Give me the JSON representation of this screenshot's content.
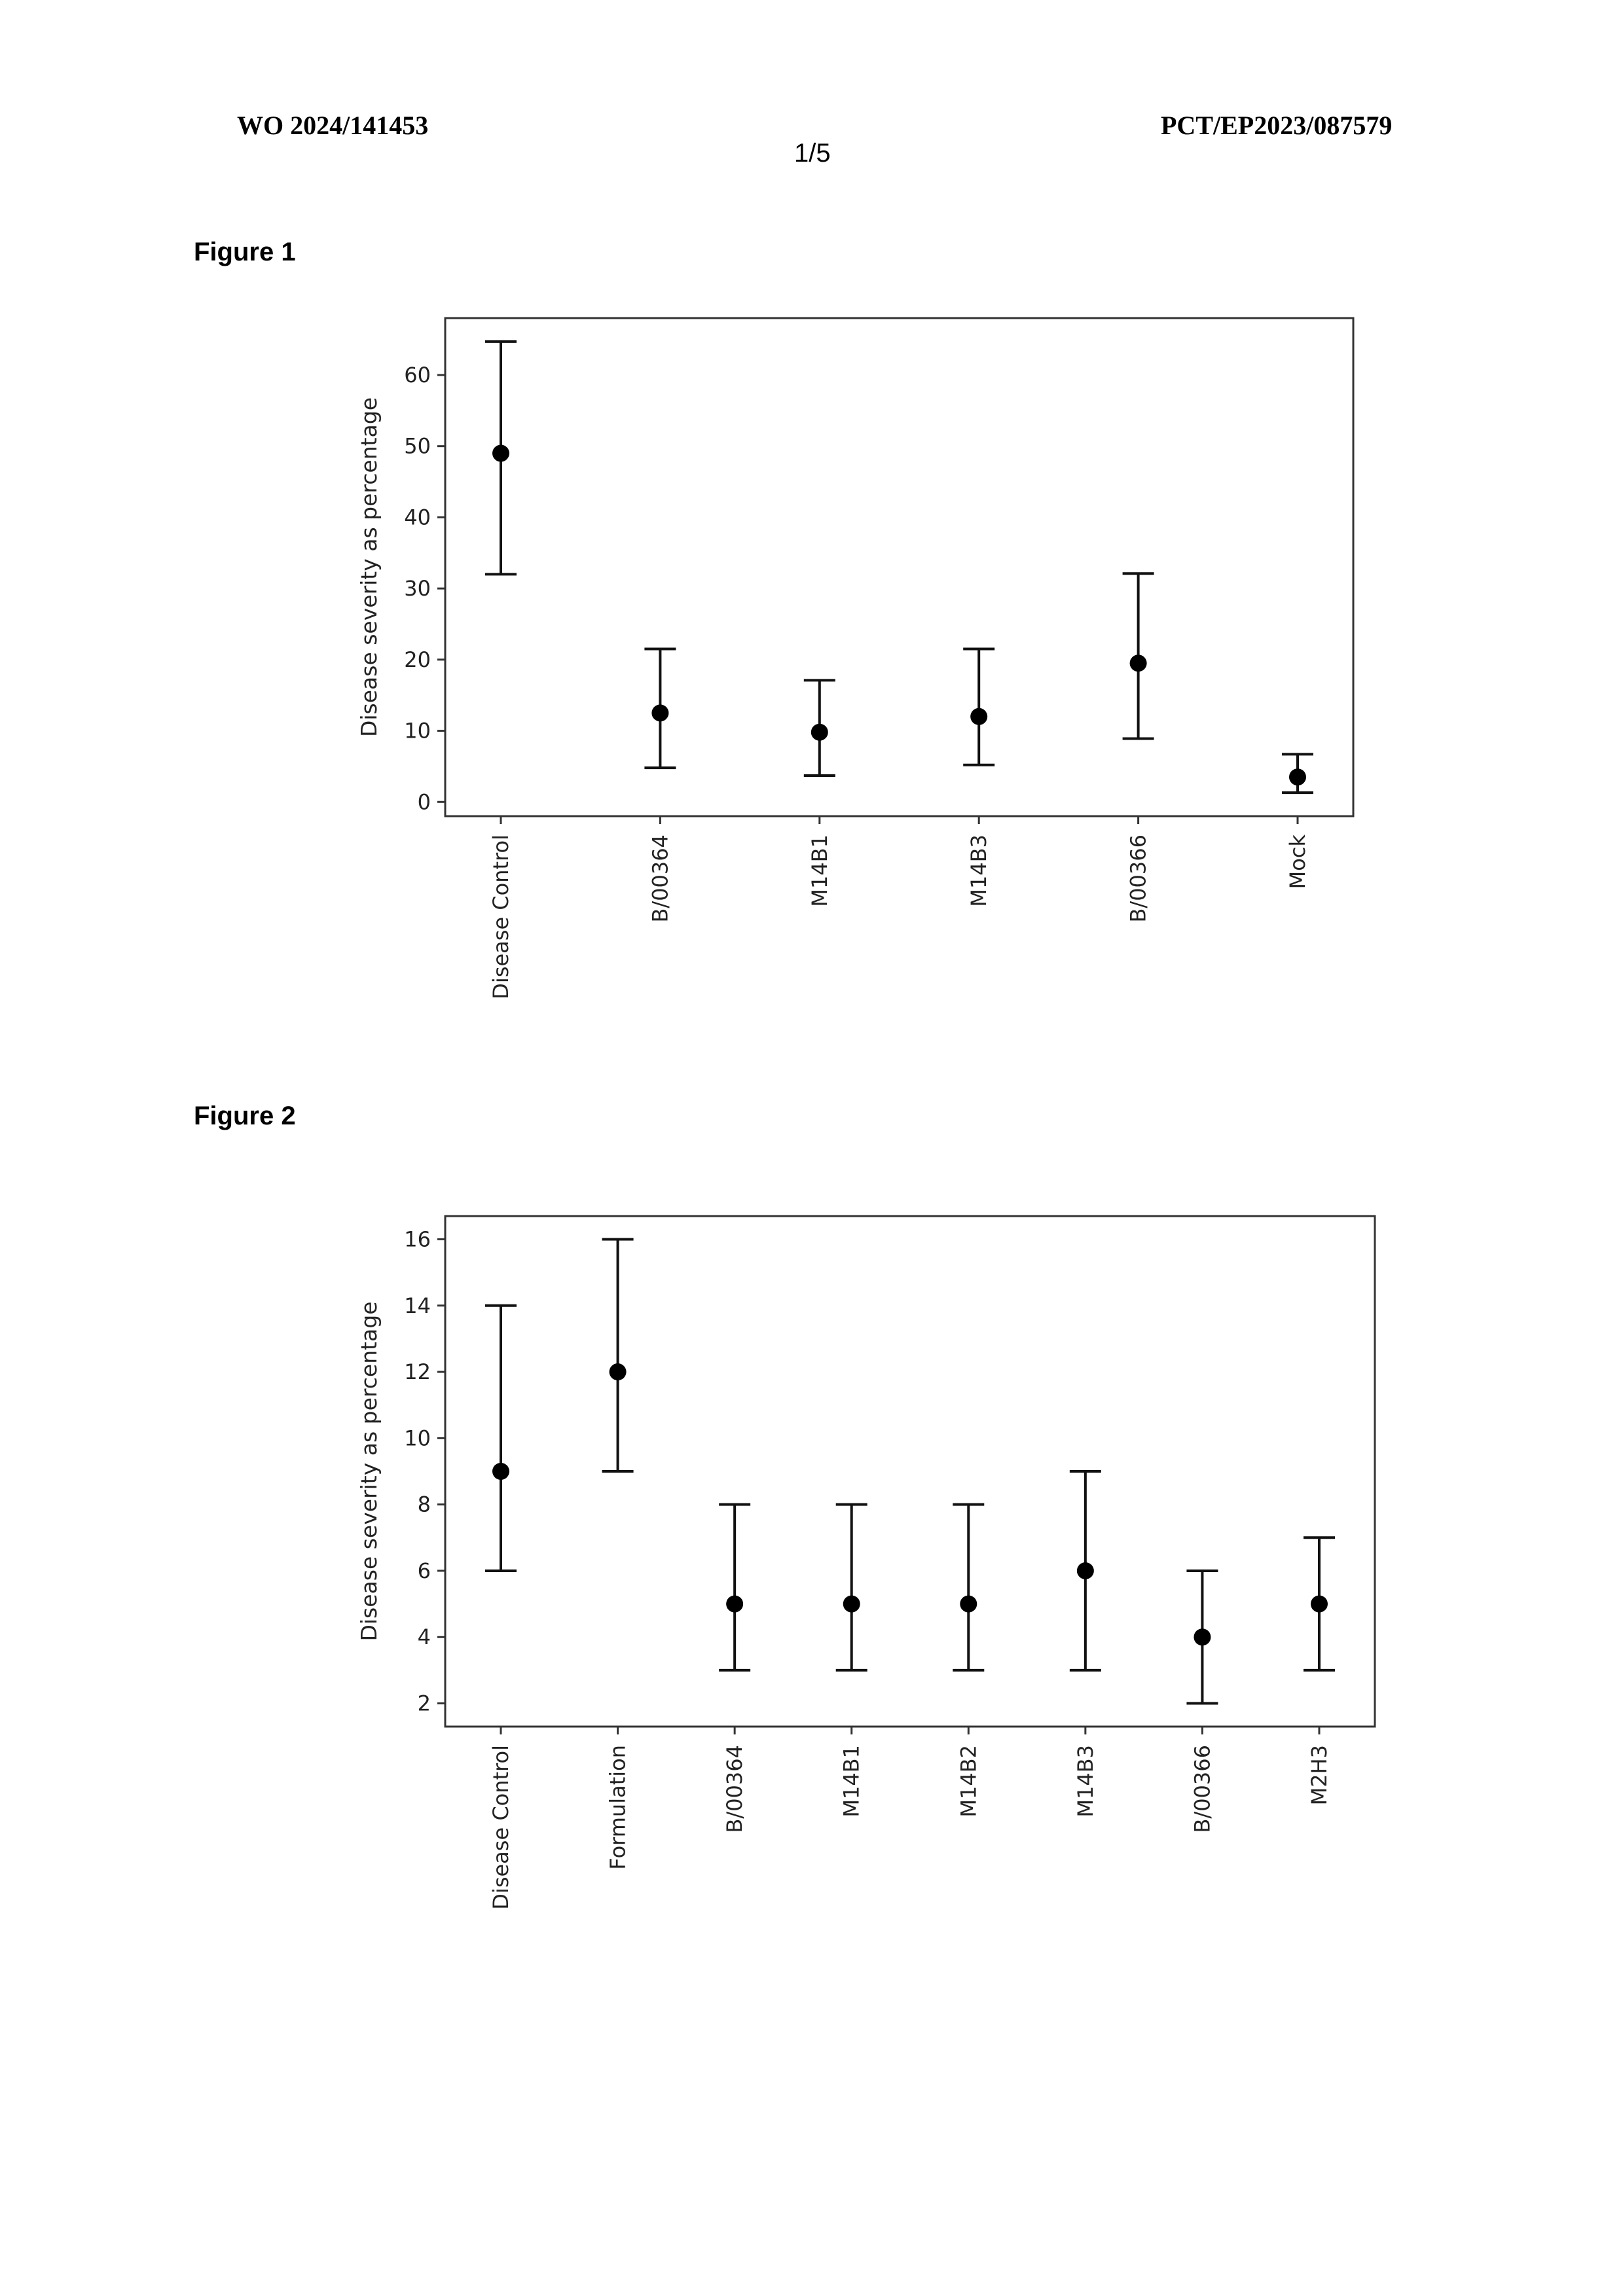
{
  "header": {
    "left": "WO 2024/141453",
    "right": "PCT/EP2023/087579",
    "page": "1/5"
  },
  "figure1": {
    "label": "Figure 1",
    "chart_data": {
      "type": "scatter",
      "error_bars": true,
      "categories": [
        "Disease Control",
        "B/00364",
        "M14B1",
        "M14B3",
        "B/00366",
        "Mock"
      ],
      "values": [
        49,
        12.5,
        9.8,
        12,
        19.5,
        3.5
      ],
      "lower": [
        32,
        4.8,
        3.7,
        5.2,
        8.9,
        1.3
      ],
      "upper": [
        64.7,
        21.5,
        17.1,
        21.5,
        32.1,
        6.7
      ],
      "ylabel": "Disease severity as percentage",
      "yticks": [
        0,
        10,
        20,
        30,
        40,
        50,
        60
      ],
      "ylim": [
        -2,
        68
      ]
    }
  },
  "figure2": {
    "label": "Figure 2",
    "chart_data": {
      "type": "scatter",
      "error_bars": true,
      "categories": [
        "Disease Control",
        "Formulation",
        "B/00364",
        "M14B1",
        "M14B2",
        "M14B3",
        "B/00366",
        "M2H3"
      ],
      "values": [
        9,
        12,
        5,
        5,
        5,
        6,
        4,
        5
      ],
      "lower": [
        6,
        9,
        3,
        3,
        3,
        3,
        2,
        3
      ],
      "upper": [
        14,
        16,
        8,
        8,
        8,
        9,
        6,
        7
      ],
      "ylabel": "Disease severity as percentage",
      "yticks": [
        2,
        4,
        6,
        8,
        10,
        12,
        14,
        16
      ],
      "ylim": [
        1.3,
        16.7
      ]
    }
  }
}
